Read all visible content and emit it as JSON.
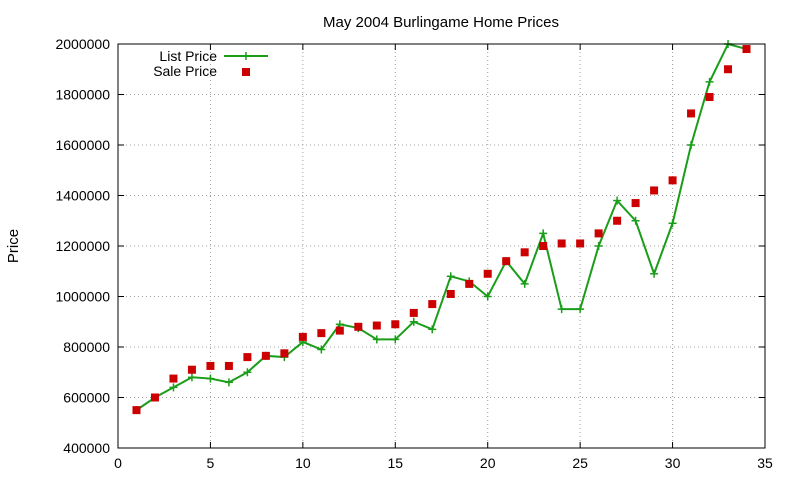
{
  "chart_data": {
    "type": "line",
    "title": "May 2004 Burlingame Home Prices",
    "xlabel": "",
    "ylabel": "Price",
    "xlim": [
      0,
      35
    ],
    "ylim": [
      400000,
      2000000
    ],
    "xticks": [
      0,
      5,
      10,
      15,
      20,
      25,
      30,
      35
    ],
    "yticks": [
      400000,
      600000,
      800000,
      1000000,
      1200000,
      1400000,
      1600000,
      1800000,
      2000000
    ],
    "grid": true,
    "legend_position": "top-left",
    "series": [
      {
        "name": "List Price",
        "style": "linespoints",
        "marker": "plus",
        "color": "#1a9e1a",
        "x": [
          1,
          2,
          3,
          4,
          5,
          6,
          7,
          8,
          9,
          10,
          11,
          12,
          13,
          14,
          15,
          16,
          17,
          18,
          19,
          20,
          21,
          22,
          23,
          24,
          25,
          26,
          27,
          28,
          29,
          30,
          31,
          32,
          33,
          34
        ],
        "y": [
          550000,
          600000,
          640000,
          680000,
          675000,
          660000,
          700000,
          765000,
          760000,
          820000,
          790000,
          890000,
          875000,
          830000,
          830000,
          900000,
          870000,
          1080000,
          1060000,
          1000000,
          1140000,
          1050000,
          1250000,
          950000,
          950000,
          1200000,
          1380000,
          1300000,
          1090000,
          1290000,
          1600000,
          1850000,
          2000000,
          1980000
        ]
      },
      {
        "name": "Sale Price",
        "style": "points",
        "marker": "square",
        "color": "#cc0000",
        "x": [
          1,
          2,
          3,
          4,
          5,
          6,
          7,
          8,
          9,
          10,
          11,
          12,
          13,
          14,
          15,
          16,
          17,
          18,
          19,
          20,
          21,
          22,
          23,
          24,
          25,
          26,
          27,
          28,
          29,
          30,
          31,
          32,
          33,
          34
        ],
        "y": [
          550000,
          600000,
          675000,
          710000,
          725000,
          725000,
          760000,
          765000,
          775000,
          840000,
          855000,
          865000,
          880000,
          885000,
          890000,
          935000,
          970000,
          1010000,
          1050000,
          1090000,
          1140000,
          1175000,
          1200000,
          1210000,
          1210000,
          1250000,
          1300000,
          1370000,
          1420000,
          1460000,
          1725000,
          1790000,
          1900000,
          1980000
        ]
      }
    ]
  }
}
